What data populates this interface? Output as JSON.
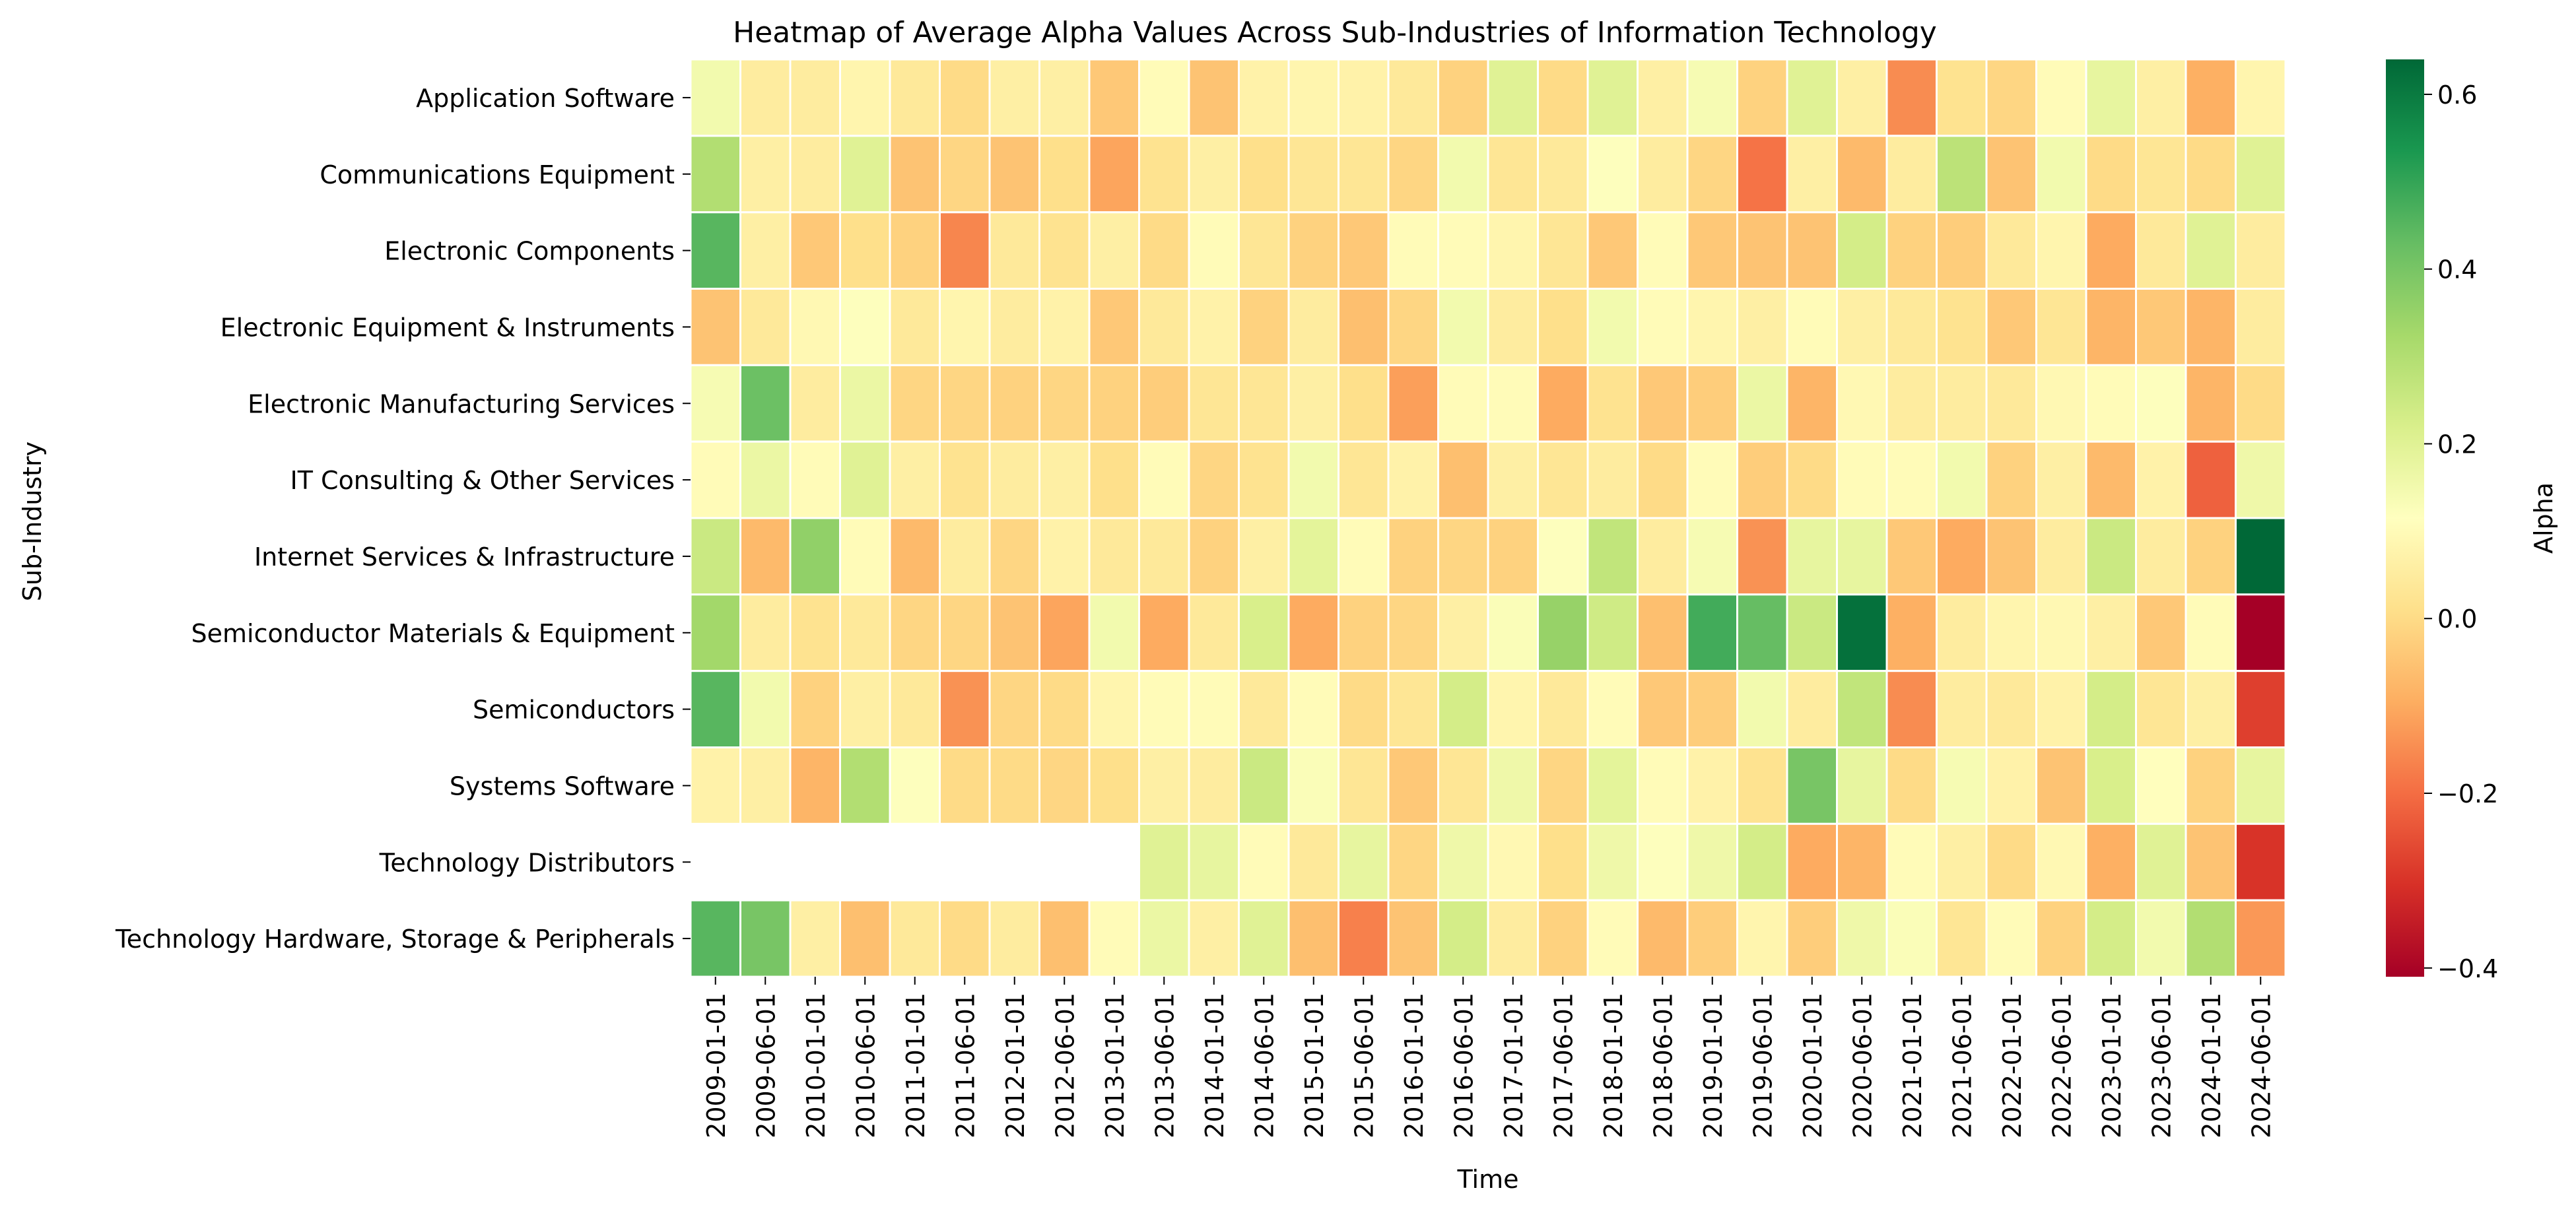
{
  "chart_data": {
    "type": "heatmap",
    "title": "Heatmap of Average Alpha Values Across Sub-Industries of Information Technology",
    "xlabel": "Time",
    "ylabel": "Sub-Industry",
    "colorbar_label": "Alpha",
    "colormap": "RdYlGn",
    "vmin": -0.41,
    "vmax": 0.64,
    "colorbar_ticks": [
      {
        "value": 0.6,
        "label": "0.6"
      },
      {
        "value": 0.4,
        "label": "0.4"
      },
      {
        "value": 0.2,
        "label": "0.2"
      },
      {
        "value": 0.0,
        "label": "0.0"
      },
      {
        "value": -0.2,
        "label": "−0.2"
      },
      {
        "value": -0.4,
        "label": "−0.4"
      }
    ],
    "x": [
      "2009-01-01",
      "2009-06-01",
      "2010-01-01",
      "2010-06-01",
      "2011-01-01",
      "2011-06-01",
      "2012-01-01",
      "2012-06-01",
      "2013-01-01",
      "2013-06-01",
      "2014-01-01",
      "2014-06-01",
      "2015-01-01",
      "2015-06-01",
      "2016-01-01",
      "2016-06-01",
      "2017-01-01",
      "2017-06-01",
      "2018-01-01",
      "2018-06-01",
      "2019-01-01",
      "2019-06-01",
      "2020-01-01",
      "2020-06-01",
      "2021-01-01",
      "2021-06-01",
      "2022-01-01",
      "2022-06-01",
      "2023-01-01",
      "2023-06-01",
      "2024-01-01",
      "2024-06-01"
    ],
    "y": [
      "Application Software",
      "Communications Equipment",
      "Electronic Components",
      "Electronic Equipment & Instruments",
      "Electronic Manufacturing Services",
      "IT Consulting & Other Services",
      "Internet Services & Infrastructure",
      "Semiconductor Materials & Equipment",
      "Semiconductors",
      "Systems Software",
      "Technology Distributors",
      "Technology Hardware, Storage & Peripherals"
    ],
    "values": [
      [
        0.15,
        0.05,
        0.05,
        0.08,
        0.04,
        0.0,
        0.06,
        0.06,
        -0.04,
        0.1,
        -0.05,
        0.07,
        0.08,
        0.07,
        0.04,
        -0.02,
        0.2,
        0.0,
        0.2,
        0.06,
        0.14,
        -0.02,
        0.2,
        0.06,
        -0.15,
        0.02,
        -0.01,
        0.1,
        0.18,
        0.06,
        -0.09,
        0.08
      ],
      [
        0.3,
        0.06,
        0.05,
        0.2,
        -0.05,
        -0.01,
        -0.05,
        0.01,
        -0.11,
        0.02,
        0.06,
        0.01,
        0.03,
        0.03,
        -0.01,
        0.15,
        0.03,
        0.04,
        0.12,
        0.05,
        -0.01,
        -0.19,
        0.06,
        -0.07,
        0.05,
        0.28,
        -0.05,
        0.15,
        0.0,
        0.03,
        0.0,
        0.2
      ],
      [
        0.45,
        0.06,
        -0.04,
        0.01,
        -0.02,
        -0.16,
        0.04,
        0.02,
        0.06,
        0.0,
        0.1,
        0.03,
        -0.02,
        -0.04,
        0.1,
        0.1,
        0.08,
        0.03,
        -0.04,
        0.1,
        -0.04,
        -0.05,
        -0.05,
        0.23,
        -0.02,
        -0.03,
        0.04,
        0.08,
        -0.1,
        0.04,
        0.2,
        0.05
      ],
      [
        -0.05,
        0.04,
        0.09,
        0.12,
        0.04,
        0.08,
        0.05,
        0.07,
        -0.04,
        0.04,
        0.07,
        -0.02,
        0.05,
        -0.06,
        -0.01,
        0.15,
        0.05,
        0.01,
        0.15,
        0.1,
        0.08,
        0.06,
        0.1,
        0.06,
        0.04,
        0.02,
        -0.04,
        0.03,
        -0.08,
        -0.04,
        -0.08,
        0.05
      ],
      [
        0.14,
        0.42,
        0.05,
        0.17,
        -0.01,
        -0.01,
        -0.02,
        -0.01,
        -0.02,
        -0.03,
        0.03,
        0.03,
        0.06,
        0.01,
        -0.12,
        0.1,
        0.1,
        -0.1,
        0.02,
        -0.04,
        -0.03,
        0.17,
        -0.08,
        0.09,
        0.05,
        0.05,
        0.04,
        0.09,
        0.1,
        0.12,
        -0.08,
        0.0
      ],
      [
        0.1,
        0.17,
        0.1,
        0.2,
        0.06,
        0.02,
        0.05,
        0.06,
        0.01,
        0.1,
        -0.01,
        0.02,
        0.15,
        0.03,
        0.07,
        -0.06,
        0.06,
        0.03,
        0.05,
        0.0,
        0.1,
        -0.03,
        0.0,
        0.1,
        0.1,
        0.15,
        -0.02,
        0.06,
        -0.07,
        0.07,
        -0.22,
        0.16
      ],
      [
        0.25,
        -0.07,
        0.36,
        0.1,
        -0.07,
        0.05,
        -0.01,
        0.07,
        0.04,
        0.04,
        -0.02,
        0.06,
        0.19,
        0.1,
        -0.02,
        -0.01,
        -0.02,
        0.12,
        0.27,
        0.05,
        0.14,
        -0.14,
        0.18,
        0.18,
        -0.04,
        -0.1,
        -0.05,
        0.05,
        0.25,
        0.05,
        -0.02,
        0.64
      ],
      [
        0.33,
        0.05,
        0.02,
        0.04,
        -0.01,
        -0.01,
        -0.05,
        -0.11,
        0.15,
        -0.1,
        0.04,
        0.22,
        -0.1,
        -0.02,
        -0.01,
        0.06,
        0.13,
        0.35,
        0.24,
        -0.06,
        0.48,
        0.43,
        0.25,
        0.62,
        -0.09,
        0.05,
        0.08,
        0.09,
        0.06,
        -0.04,
        0.1,
        -0.41
      ],
      [
        0.45,
        0.15,
        -0.02,
        0.06,
        0.04,
        -0.14,
        -0.01,
        0.0,
        0.08,
        0.1,
        0.1,
        0.04,
        0.1,
        0.0,
        0.03,
        0.23,
        0.08,
        0.04,
        0.1,
        -0.04,
        -0.03,
        0.15,
        0.05,
        0.27,
        -0.15,
        0.05,
        0.04,
        0.07,
        0.23,
        0.03,
        0.06,
        -0.28
      ],
      [
        0.07,
        0.06,
        -0.08,
        0.3,
        0.12,
        0.0,
        0.0,
        -0.01,
        0.01,
        0.06,
        0.05,
        0.25,
        0.13,
        0.03,
        -0.04,
        0.03,
        0.16,
        -0.01,
        0.19,
        0.1,
        0.07,
        0.02,
        0.4,
        0.18,
        0.0,
        0.14,
        0.07,
        -0.05,
        0.22,
        0.11,
        -0.02,
        0.18
      ],
      [
        null,
        null,
        null,
        null,
        null,
        null,
        null,
        null,
        null,
        0.2,
        0.18,
        0.1,
        0.04,
        0.18,
        -0.01,
        0.16,
        0.09,
        0.01,
        0.16,
        0.12,
        0.16,
        0.23,
        -0.1,
        -0.08,
        0.1,
        0.06,
        0.0,
        0.09,
        -0.09,
        0.2,
        -0.05,
        -0.3
      ],
      [
        0.45,
        0.4,
        0.06,
        -0.06,
        0.04,
        0.0,
        0.05,
        -0.06,
        0.1,
        0.17,
        0.06,
        0.2,
        -0.06,
        -0.17,
        -0.05,
        0.23,
        0.05,
        -0.02,
        0.1,
        -0.07,
        -0.03,
        0.08,
        -0.03,
        0.16,
        0.13,
        0.03,
        0.1,
        -0.02,
        0.23,
        0.15,
        0.3,
        -0.13
      ]
    ]
  }
}
